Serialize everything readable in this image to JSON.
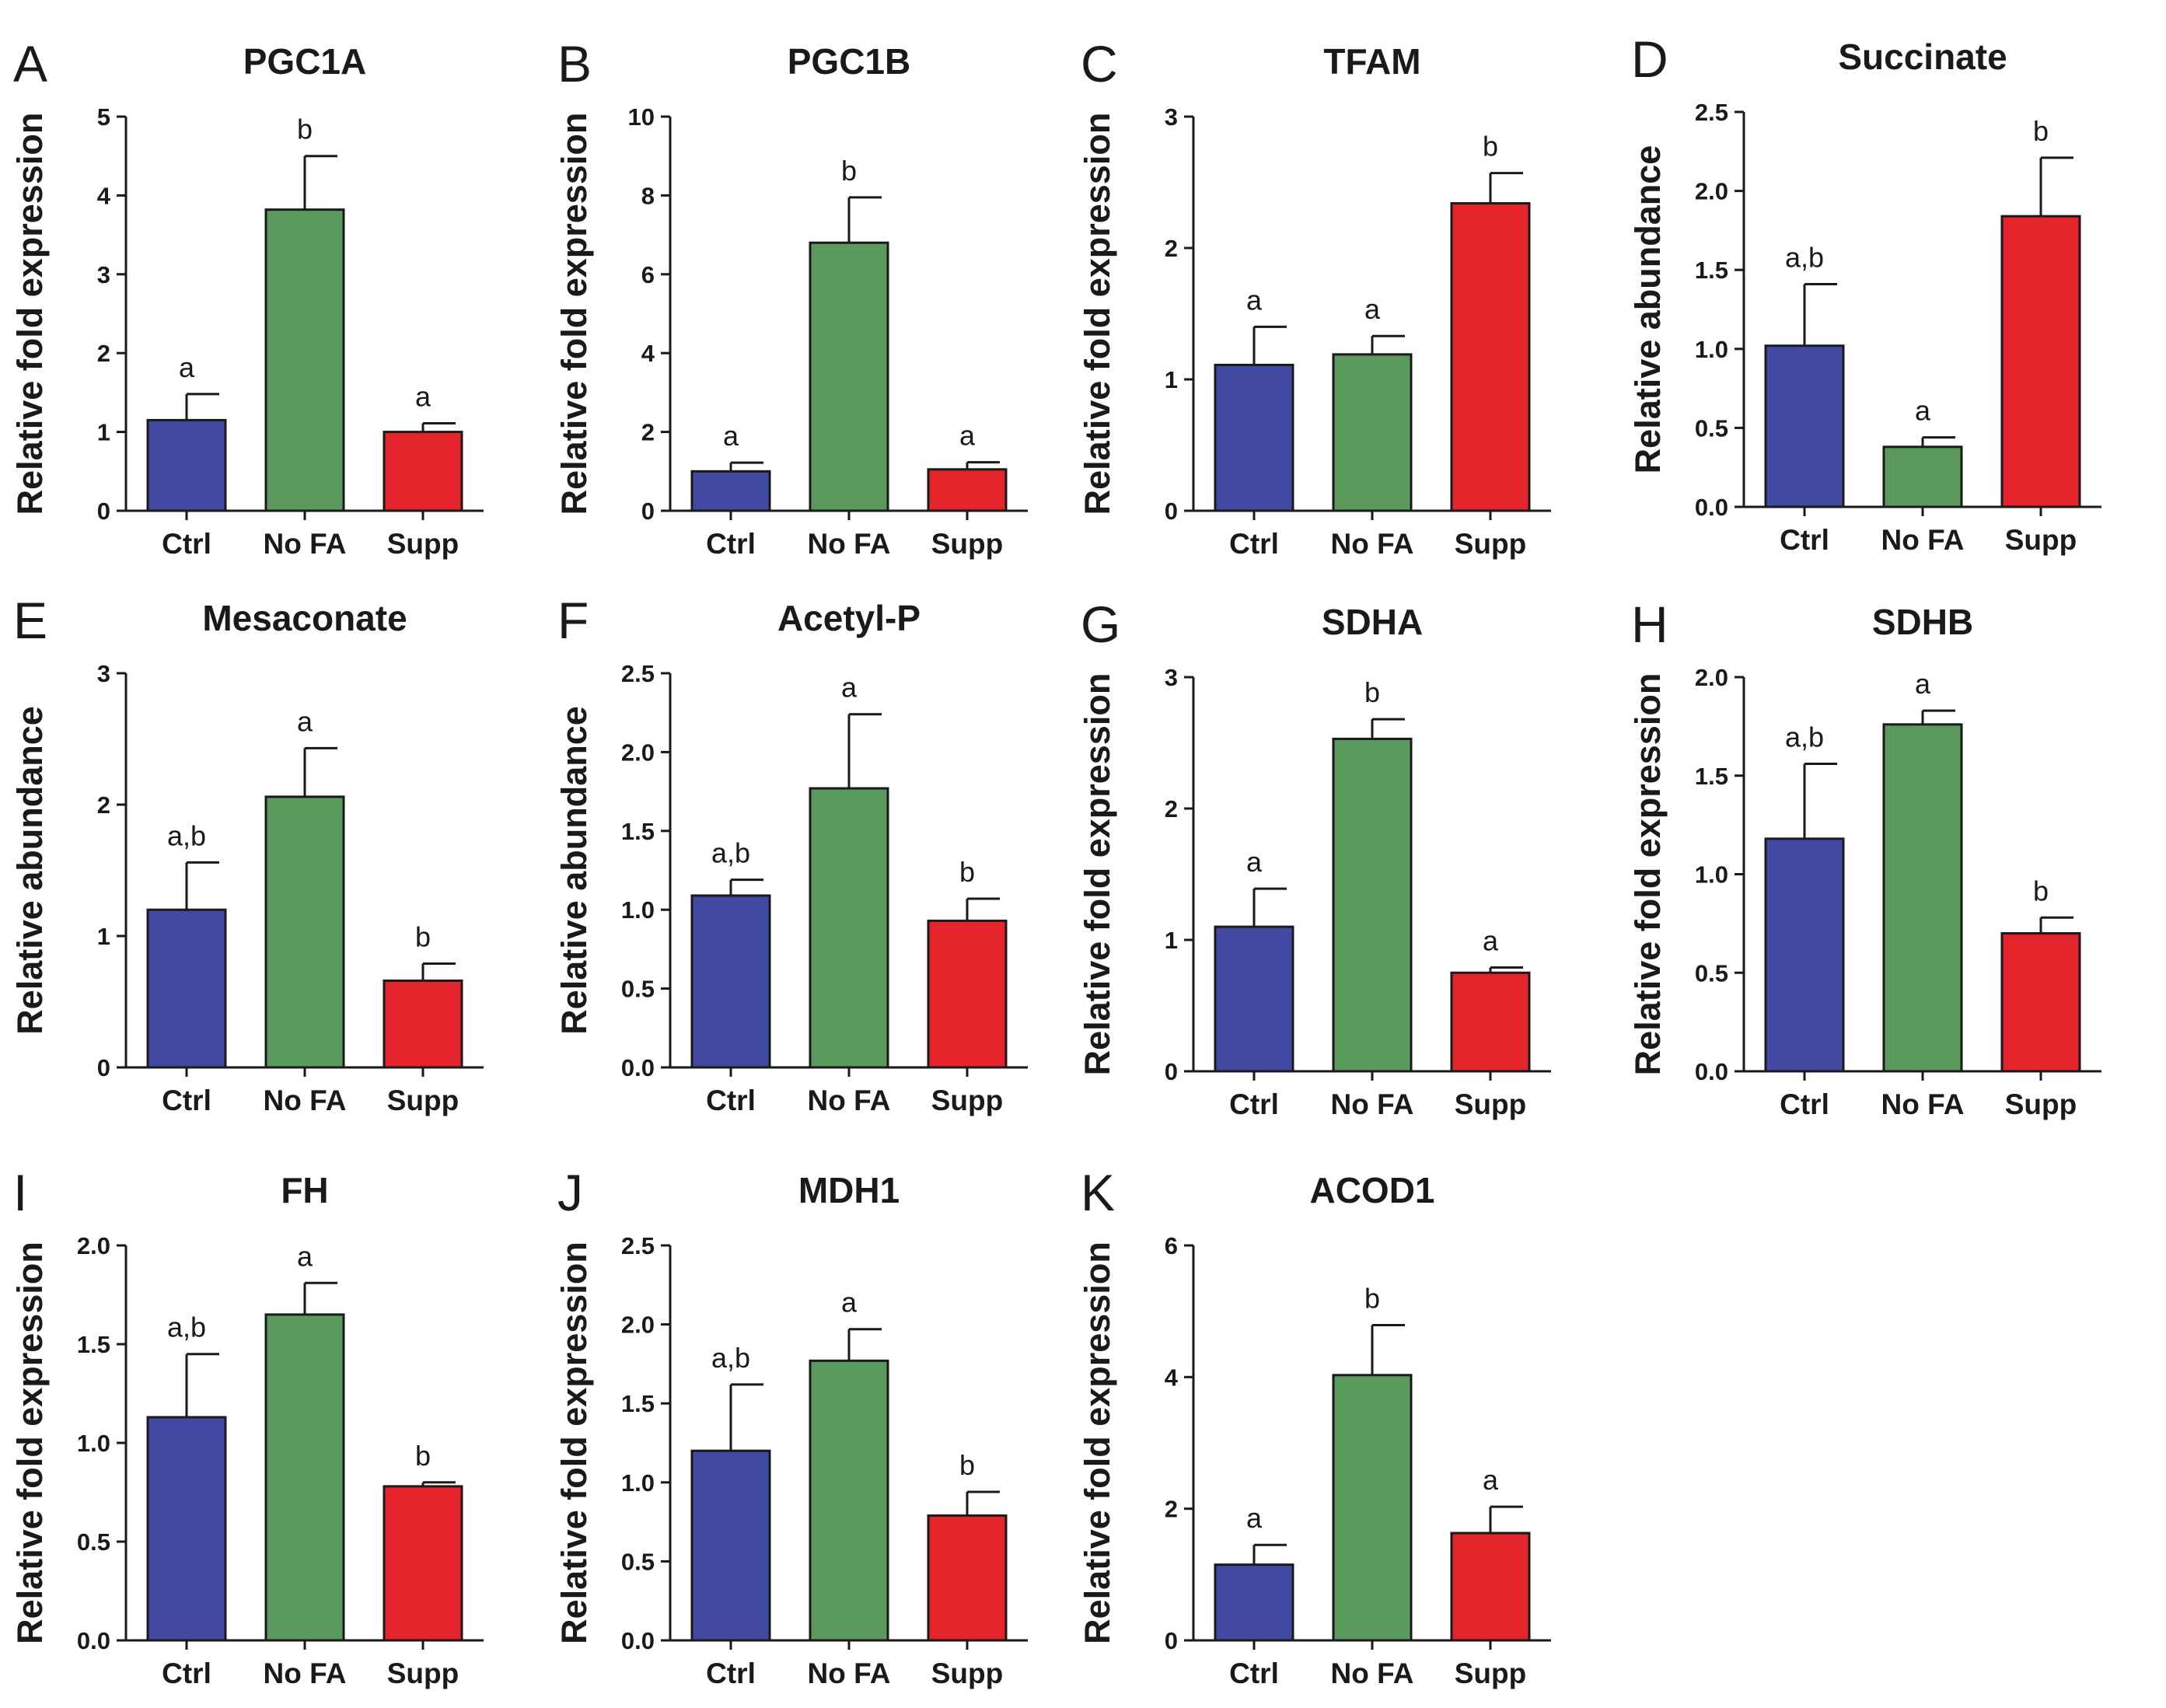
{
  "colors": {
    "Ctrl": "#4149a3",
    "No FA": "#5a9a5c",
    "Supp": "#e4232b"
  },
  "chart_data": [
    {
      "type": "bar",
      "letter": "A",
      "title": "PGC1A",
      "ylabel": "Relative fold expression",
      "categories": [
        "Ctrl",
        "No FA",
        "Supp"
      ],
      "values": [
        1.15,
        3.82,
        1.0
      ],
      "errors": [
        0.33,
        0.68,
        0.11
      ],
      "significance": [
        "a",
        "b",
        "a"
      ],
      "ylim": [
        0,
        5
      ],
      "yticks": [
        "0",
        "1",
        "2",
        "3",
        "4",
        "5"
      ]
    },
    {
      "type": "bar",
      "letter": "B",
      "title": "PGC1B",
      "ylabel": "Relative fold expression",
      "categories": [
        "Ctrl",
        "No FA",
        "Supp"
      ],
      "values": [
        1.0,
        6.8,
        1.05
      ],
      "errors": [
        0.22,
        1.15,
        0.18
      ],
      "significance": [
        "a",
        "b",
        "a"
      ],
      "ylim": [
        0,
        10
      ],
      "yticks": [
        "0",
        "2",
        "4",
        "6",
        "8",
        "10"
      ]
    },
    {
      "type": "bar",
      "letter": "C",
      "title": "TFAM",
      "ylabel": "Relative fold expression",
      "categories": [
        "Ctrl",
        "No FA",
        "Supp"
      ],
      "values": [
        1.11,
        1.19,
        2.34
      ],
      "errors": [
        0.29,
        0.14,
        0.23
      ],
      "significance": [
        "a",
        "a",
        "b"
      ],
      "ylim": [
        0,
        3
      ],
      "yticks": [
        "0",
        "1",
        "2",
        "3"
      ]
    },
    {
      "type": "bar",
      "letter": "D",
      "title": "Succinate",
      "ylabel": "Relative abundance",
      "categories": [
        "Ctrl",
        "No FA",
        "Supp"
      ],
      "values": [
        1.02,
        0.38,
        1.84
      ],
      "errors": [
        0.39,
        0.06,
        0.37
      ],
      "significance": [
        "a,b",
        "a",
        "b"
      ],
      "ylim": [
        0,
        2.5
      ],
      "yticks": [
        "0.0",
        "0.5",
        "1.0",
        "1.5",
        "2.0",
        "2.5"
      ]
    },
    {
      "type": "bar",
      "letter": "E",
      "title": "Mesaconate",
      "ylabel": "Relative abundance",
      "categories": [
        "Ctrl",
        "No FA",
        "Supp"
      ],
      "values": [
        1.2,
        2.06,
        0.66
      ],
      "errors": [
        0.36,
        0.37,
        0.13
      ],
      "significance": [
        "a,b",
        "a",
        "b"
      ],
      "ylim": [
        0,
        3
      ],
      "yticks": [
        "0",
        "1",
        "2",
        "3"
      ]
    },
    {
      "type": "bar",
      "letter": "F",
      "title": "Acetyl-P",
      "ylabel": "Relative abundance",
      "categories": [
        "Ctrl",
        "No FA",
        "Supp"
      ],
      "values": [
        1.09,
        1.77,
        0.93
      ],
      "errors": [
        0.1,
        0.47,
        0.14
      ],
      "significance": [
        "a,b",
        "a",
        "b"
      ],
      "ylim": [
        0,
        2.5
      ],
      "yticks": [
        "0.0",
        "0.5",
        "1.0",
        "1.5",
        "2.0",
        "2.5"
      ]
    },
    {
      "type": "bar",
      "letter": "G",
      "title": "SDHA",
      "ylabel": "Relative fold expression",
      "categories": [
        "Ctrl",
        "No FA",
        "Supp"
      ],
      "values": [
        1.1,
        2.53,
        0.75
      ],
      "errors": [
        0.29,
        0.15,
        0.04
      ],
      "significance": [
        "a",
        "b",
        "a"
      ],
      "ylim": [
        0,
        3
      ],
      "yticks": [
        "0",
        "1",
        "2",
        "3"
      ]
    },
    {
      "type": "bar",
      "letter": "H",
      "title": "SDHB",
      "ylabel": "Relative fold expression",
      "categories": [
        "Ctrl",
        "No FA",
        "Supp"
      ],
      "values": [
        1.18,
        1.76,
        0.7
      ],
      "errors": [
        0.38,
        0.07,
        0.08
      ],
      "significance": [
        "a,b",
        "a",
        "b"
      ],
      "ylim": [
        0,
        2
      ],
      "yticks": [
        "0.0",
        "0.5",
        "1.0",
        "1.5",
        "2.0"
      ]
    },
    {
      "type": "bar",
      "letter": "I",
      "title": "FH",
      "ylabel": "Relative fold expression",
      "categories": [
        "Ctrl",
        "No FA",
        "Supp"
      ],
      "values": [
        1.13,
        1.65,
        0.78
      ],
      "errors": [
        0.32,
        0.16,
        0.02
      ],
      "significance": [
        "a,b",
        "a",
        "b"
      ],
      "ylim": [
        0,
        2
      ],
      "yticks": [
        "0.0",
        "0.5",
        "1.0",
        "1.5",
        "2.0"
      ]
    },
    {
      "type": "bar",
      "letter": "J",
      "title": "MDH1",
      "ylabel": "Relative fold expression",
      "categories": [
        "Ctrl",
        "No FA",
        "Supp"
      ],
      "values": [
        1.2,
        1.77,
        0.79
      ],
      "errors": [
        0.42,
        0.2,
        0.15
      ],
      "significance": [
        "a,b",
        "a",
        "b"
      ],
      "ylim": [
        0,
        2.5
      ],
      "yticks": [
        "0.0",
        "0.5",
        "1.0",
        "1.5",
        "2.0",
        "2.5"
      ]
    },
    {
      "type": "bar",
      "letter": "K",
      "title": "ACOD1",
      "ylabel": "Relative fold expression",
      "categories": [
        "Ctrl",
        "No FA",
        "Supp"
      ],
      "values": [
        1.15,
        4.03,
        1.63
      ],
      "errors": [
        0.3,
        0.76,
        0.4
      ],
      "significance": [
        "a",
        "b",
        "a"
      ],
      "ylim": [
        0,
        6
      ],
      "yticks": [
        "0",
        "2",
        "4",
        "6"
      ]
    }
  ]
}
